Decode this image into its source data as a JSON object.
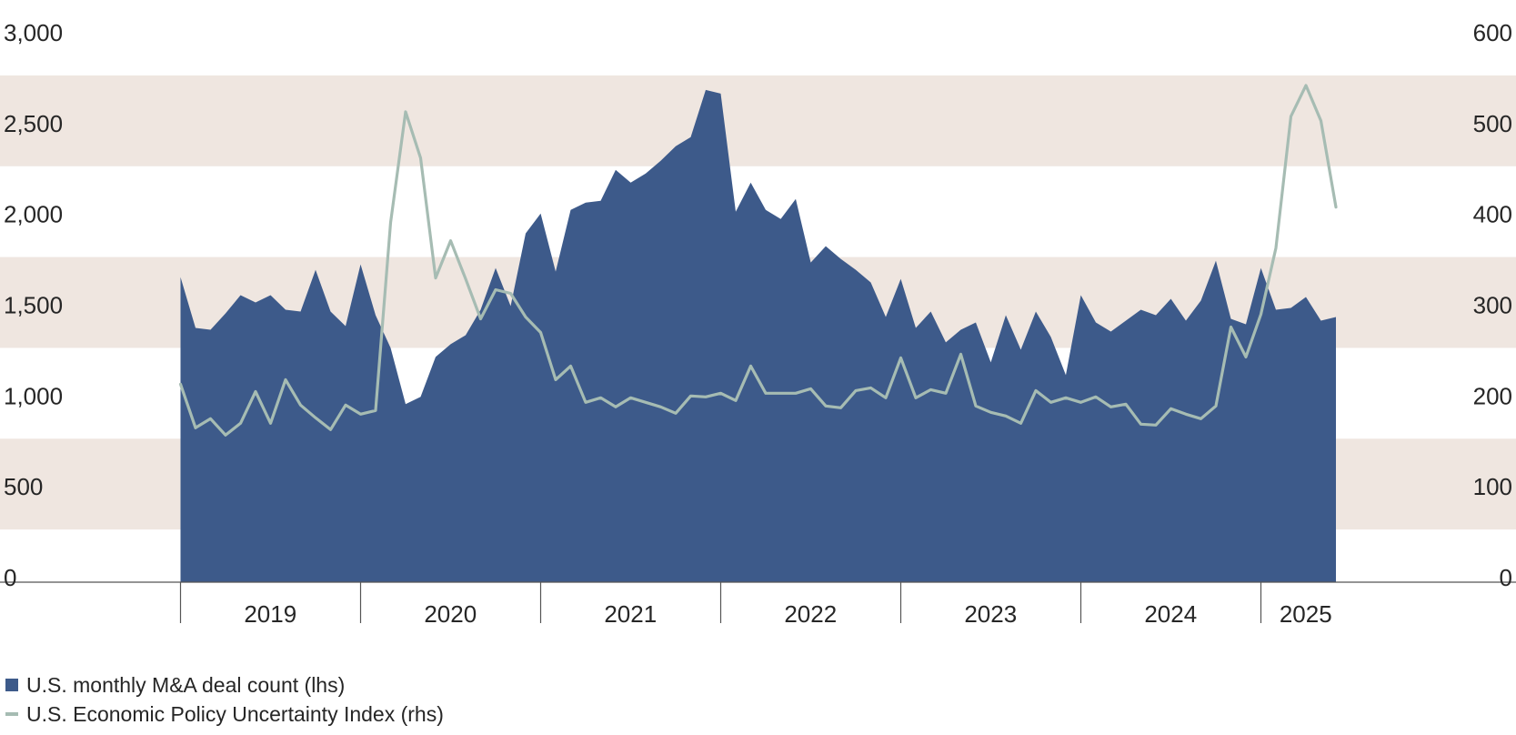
{
  "chart_data": {
    "type": "area",
    "start": "2019-01",
    "xtick_labels": [
      "2019",
      "2020",
      "2021",
      "2022",
      "2023",
      "2024",
      "2025"
    ],
    "left_axis": {
      "ticks": [
        "3,000",
        "2,500",
        "2,000",
        "1,500",
        "1,000",
        "500",
        "0"
      ],
      "ylim": [
        0,
        3000
      ]
    },
    "right_axis": {
      "ticks": [
        "600",
        "500",
        "400",
        "300",
        "200",
        "100",
        "0"
      ],
      "ylim": [
        0,
        600
      ]
    },
    "bands": "alternating beige horizontal bands",
    "series": [
      {
        "name": "U.S. monthly M&A deal count (lhs)",
        "axis": "left",
        "chart_type": "area",
        "color": "#3d5a8a",
        "values": [
          1680,
          1400,
          1390,
          1480,
          1580,
          1540,
          1580,
          1500,
          1490,
          1720,
          1490,
          1410,
          1750,
          1470,
          1290,
          980,
          1020,
          1240,
          1310,
          1360,
          1500,
          1730,
          1520,
          1920,
          2030,
          1710,
          2050,
          2090,
          2100,
          2270,
          2200,
          2250,
          2320,
          2400,
          2450,
          2710,
          2690,
          2040,
          2200,
          2050,
          2000,
          2110,
          1760,
          1850,
          1780,
          1720,
          1650,
          1460,
          1670,
          1400,
          1490,
          1320,
          1390,
          1430,
          1210,
          1470,
          1280,
          1490,
          1350,
          1140,
          1580,
          1430,
          1380,
          1440,
          1500,
          1470,
          1560,
          1440,
          1550,
          1770,
          1450,
          1420,
          1730,
          1500,
          1510,
          1570,
          1440,
          1460
        ]
      },
      {
        "name": "U.S. Economic Policy Uncertainty Index (rhs)",
        "axis": "right",
        "chart_type": "line",
        "color": "#a6bcb3",
        "values": [
          218,
          170,
          180,
          162,
          175,
          210,
          175,
          223,
          195,
          181,
          168,
          195,
          185,
          189,
          396,
          518,
          467,
          335,
          376,
          334,
          290,
          322,
          318,
          292,
          275,
          223,
          238,
          198,
          203,
          193,
          203,
          198,
          193,
          186,
          205,
          204,
          208,
          200,
          238,
          208,
          208,
          208,
          213,
          194,
          192,
          211,
          214,
          203,
          247,
          203,
          212,
          208,
          251,
          194,
          187,
          183,
          175,
          211,
          198,
          203,
          198,
          204,
          193,
          196,
          174,
          173,
          191,
          185,
          180,
          194,
          281,
          248,
          295,
          368,
          513,
          547,
          508,
          413
        ]
      }
    ]
  },
  "legend": {
    "items": [
      {
        "label": "U.S. monthly M&A deal count (lhs)",
        "color": "#3d5a8a",
        "kind": "square"
      },
      {
        "label": "U.S. Economic Policy Uncertainty Index (rhs)",
        "color": "#a6bcb3",
        "kind": "line"
      }
    ]
  }
}
